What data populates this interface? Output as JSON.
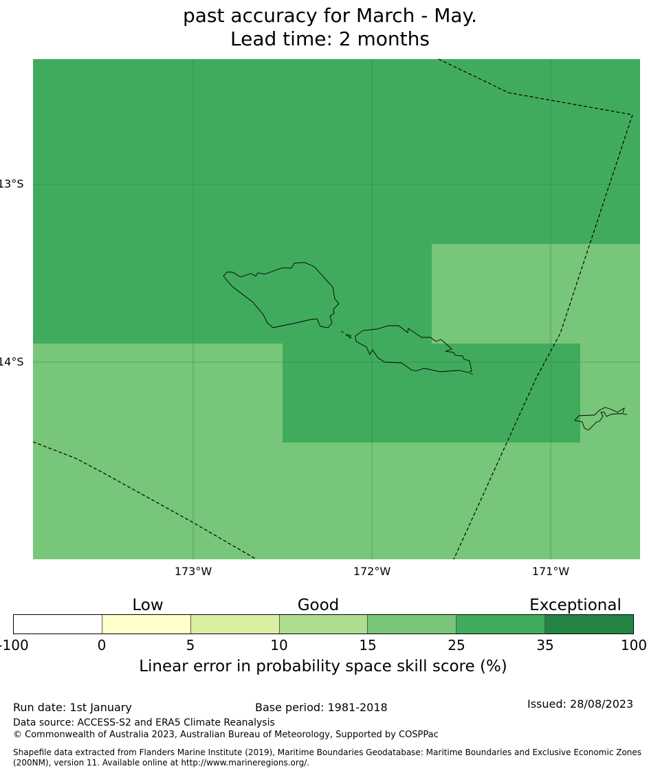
{
  "title_lines": [
    "past accuracy for March - May.",
    "Lead time: 2 months"
  ],
  "map": {
    "lat_labels": [
      "13°S",
      "14°S"
    ],
    "lon_labels": [
      "173°W",
      "172°W",
      "171°W"
    ],
    "colors": {
      "good": "#41ab5d",
      "fair": "#78c679",
      "grid": "#2a7a3f",
      "coast": "#000000"
    }
  },
  "colorbar": {
    "categories": [
      "Low",
      "Good",
      "Exceptional"
    ],
    "ticks": [
      "-100",
      "0",
      "5",
      "10",
      "15",
      "25",
      "35",
      "100"
    ],
    "colors": [
      "#ffffff",
      "#ffffcc",
      "#d9f0a3",
      "#addd8e",
      "#78c679",
      "#41ab5d",
      "#238443"
    ],
    "label": "Linear error in probability space skill score (%)"
  },
  "footer": {
    "run_date": "Run date: 1st January",
    "base_period": "Base period: 1981-2018",
    "issued": "Issued: 28/08/2023",
    "data_source": "Data source: ACCESS-S2 and ERA5 Climate Reanalysis",
    "copyright": "© Commonwealth of Australia 2023, Australian Bureau of Meteorology, Supported by COSPPac",
    "shapefile_1": "Shapefile data extracted from Flanders Marine Institute (2019), Maritime Boundaries Geodatabase: Maritime Boundaries and Exclusive Economic Zones",
    "shapefile_2": "(200NM), version 11. Available online at http://www.marineregions.org/."
  }
}
